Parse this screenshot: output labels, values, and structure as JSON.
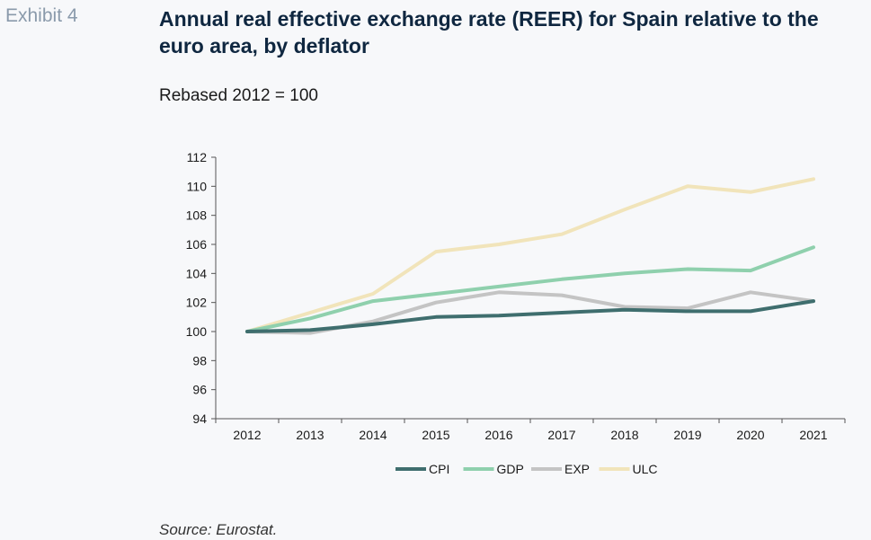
{
  "header": {
    "exhibit": "Exhibit 4",
    "title": "Annual real effective exchange rate (REER) for Spain relative to the euro area, by deflator",
    "subtitle": "Rebased 2012 = 100"
  },
  "footer": {
    "source": "Source: Eurostat."
  },
  "colors": {
    "CPI": "#3f6e6e",
    "GDP": "#8fd0ad",
    "EXP": "#c4c4c4",
    "ULC": "#f1e4ba"
  },
  "chart_data": {
    "type": "line",
    "x": [
      "2012",
      "2013",
      "2014",
      "2015",
      "2016",
      "2017",
      "2018",
      "2019",
      "2020",
      "2021"
    ],
    "ylim": [
      94,
      112
    ],
    "yticks": [
      94,
      96,
      98,
      100,
      102,
      104,
      106,
      108,
      110,
      112
    ],
    "grid": false,
    "legend_position": "bottom",
    "series": [
      {
        "name": "CPI",
        "values": [
          100.0,
          100.1,
          100.5,
          101.0,
          101.1,
          101.3,
          101.5,
          101.4,
          101.4,
          102.1
        ]
      },
      {
        "name": "GDP",
        "values": [
          100.0,
          100.9,
          102.1,
          102.6,
          103.1,
          103.6,
          104.0,
          104.3,
          104.2,
          105.8
        ]
      },
      {
        "name": "EXP",
        "values": [
          100.0,
          99.9,
          100.7,
          102.0,
          102.7,
          102.5,
          101.7,
          101.6,
          102.7,
          102.1
        ]
      },
      {
        "name": "ULC",
        "values": [
          100.0,
          101.3,
          102.6,
          105.5,
          106.0,
          106.7,
          108.4,
          110.0,
          109.6,
          110.5
        ]
      }
    ]
  }
}
